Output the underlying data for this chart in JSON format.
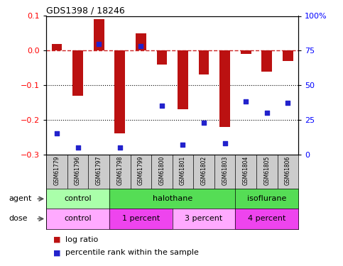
{
  "title": "GDS1398 / 18246",
  "samples": [
    "GSM61779",
    "GSM61796",
    "GSM61797",
    "GSM61798",
    "GSM61799",
    "GSM61800",
    "GSM61801",
    "GSM61802",
    "GSM61803",
    "GSM61804",
    "GSM61805",
    "GSM61806"
  ],
  "log_ratios": [
    0.02,
    -0.13,
    0.09,
    -0.24,
    0.05,
    -0.04,
    -0.17,
    -0.07,
    -0.22,
    -0.01,
    -0.06,
    -0.03
  ],
  "percentile_ranks": [
    15,
    5,
    80,
    5,
    78,
    35,
    7,
    23,
    8,
    38,
    30,
    37
  ],
  "agent_groups": [
    {
      "label": "control",
      "start": 0,
      "end": 3,
      "color": "#AAFFAA"
    },
    {
      "label": "halothane",
      "start": 3,
      "end": 9,
      "color": "#55DD55"
    },
    {
      "label": "isoflurane",
      "start": 9,
      "end": 12,
      "color": "#55DD55"
    }
  ],
  "dose_groups": [
    {
      "label": "control",
      "start": 0,
      "end": 3,
      "color": "#FFAAFF"
    },
    {
      "label": "1 percent",
      "start": 3,
      "end": 6,
      "color": "#EE44EE"
    },
    {
      "label": "3 percent",
      "start": 6,
      "end": 9,
      "color": "#FFAAFF"
    },
    {
      "label": "4 percent",
      "start": 9,
      "end": 12,
      "color": "#EE44EE"
    }
  ],
  "ylim_left": [
    -0.3,
    0.1
  ],
  "ylim_right": [
    0,
    100
  ],
  "yticks_left": [
    -0.3,
    -0.2,
    -0.1,
    0,
    0.1
  ],
  "yticks_right": [
    0,
    25,
    50,
    75,
    100
  ],
  "bar_color": "#BB1111",
  "dot_color": "#2222CC",
  "dashed_line_color": "#CC2222",
  "grid_color": "#000000",
  "background_color": "#FFFFFF",
  "gsm_bg_color": "#CCCCCC"
}
